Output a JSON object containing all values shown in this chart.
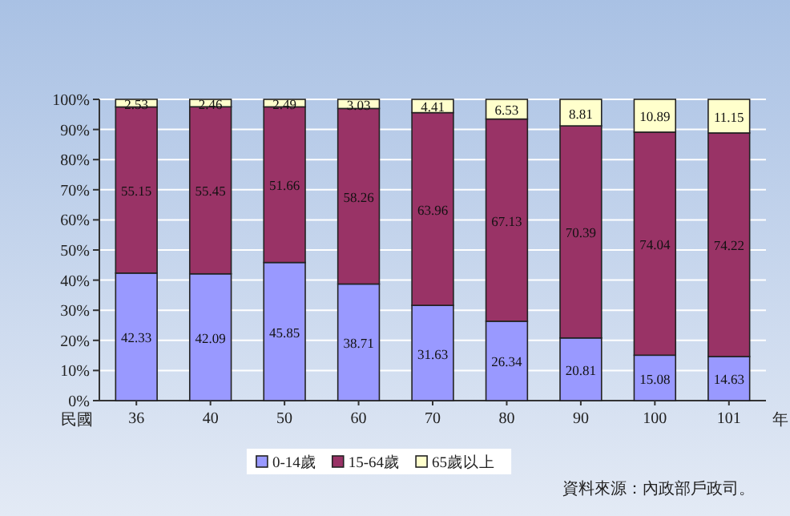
{
  "chart_data": {
    "type": "bar",
    "stacked": true,
    "categories": [
      "36",
      "40",
      "50",
      "60",
      "70",
      "80",
      "90",
      "100",
      "101"
    ],
    "series": [
      {
        "name": "0-14歲",
        "color": "#9999ff",
        "values": [
          42.33,
          42.09,
          45.85,
          38.71,
          31.63,
          26.34,
          20.81,
          15.08,
          14.63
        ]
      },
      {
        "name": "15-64歲",
        "color": "#993366",
        "values": [
          55.15,
          55.45,
          51.66,
          58.26,
          63.96,
          67.13,
          70.39,
          74.04,
          74.22
        ]
      },
      {
        "name": "65歲以上",
        "color": "#ffffcc",
        "values": [
          2.53,
          2.46,
          2.49,
          3.03,
          4.41,
          6.53,
          8.81,
          10.89,
          11.15
        ]
      }
    ],
    "ylim": [
      0,
      100
    ],
    "yticks": [
      {
        "value": 0,
        "label": "0%"
      },
      {
        "value": 10,
        "label": "10%"
      },
      {
        "value": 20,
        "label": "20%"
      },
      {
        "value": 30,
        "label": "30%"
      },
      {
        "value": 40,
        "label": "40%"
      },
      {
        "value": 50,
        "label": "50%"
      },
      {
        "value": 60,
        "label": "60%"
      },
      {
        "value": 70,
        "label": "70%"
      },
      {
        "value": 80,
        "label": "80%"
      },
      {
        "value": 90,
        "label": "90%"
      },
      {
        "value": 100,
        "label": "100%"
      }
    ],
    "xlabel": "年",
    "annotations": [
      "民國",
      "資料來源：內政部戶政司。"
    ],
    "data_labels": true,
    "grid": "y",
    "legend": "bottom"
  }
}
